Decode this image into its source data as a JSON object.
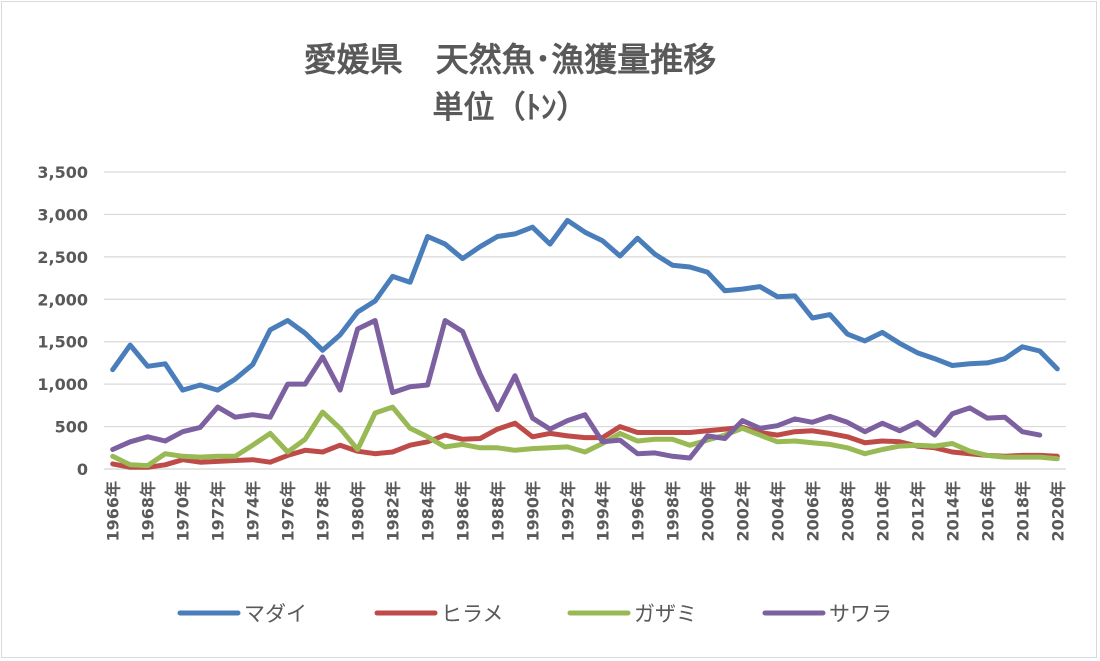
{
  "chart_data": {
    "type": "line",
    "title": "愛媛県　天然魚･漁獲量推移",
    "subtitle": "単位（ﾄﾝ）",
    "xlabel": "",
    "ylabel": "",
    "ylim": [
      0,
      3500
    ],
    "yticks": [
      0,
      500,
      1000,
      1500,
      2000,
      2500,
      3000,
      3500
    ],
    "ytick_labels": [
      "0",
      "500",
      "1,000",
      "1,500",
      "2,000",
      "2,500",
      "3,000",
      "3,500"
    ],
    "grid": true,
    "legend_position": "bottom",
    "x": [
      1966,
      1967,
      1968,
      1969,
      1970,
      1971,
      1972,
      1973,
      1974,
      1975,
      1976,
      1977,
      1978,
      1979,
      1980,
      1981,
      1982,
      1983,
      1984,
      1985,
      1986,
      1987,
      1988,
      1989,
      1990,
      1991,
      1992,
      1993,
      1994,
      1995,
      1996,
      1997,
      1998,
      1999,
      2000,
      2001,
      2002,
      2003,
      2004,
      2005,
      2006,
      2007,
      2008,
      2009,
      2010,
      2011,
      2012,
      2013,
      2014,
      2015,
      2016,
      2017,
      2018,
      2019,
      2020
    ],
    "xtick_labels": [
      "1966年",
      "1968年",
      "1970年",
      "1972年",
      "1974年",
      "1976年",
      "1978年",
      "1980年",
      "1982年",
      "1984年",
      "1986年",
      "1988年",
      "1990年",
      "1992年",
      "1994年",
      "1996年",
      "1998年",
      "2000年",
      "2002年",
      "2004年",
      "2006年",
      "2008年",
      "2010年",
      "2012年",
      "2014年",
      "2016年",
      "2018年",
      "2020年"
    ],
    "series": [
      {
        "name": "マダイ",
        "color": "#4a7ebb",
        "values": [
          1170,
          1460,
          1210,
          1240,
          930,
          990,
          930,
          1060,
          1230,
          1640,
          1750,
          1600,
          1400,
          1580,
          1850,
          1980,
          2270,
          2200,
          2740,
          2650,
          2480,
          2620,
          2740,
          2770,
          2850,
          2650,
          2930,
          2790,
          2690,
          2510,
          2720,
          2530,
          2400,
          2380,
          2320,
          2100,
          2120,
          2150,
          2030,
          2040,
          1780,
          1820,
          1590,
          1510,
          1610,
          1480,
          1370,
          1300,
          1220,
          1240,
          1250,
          1300,
          1440,
          1390,
          1180
        ]
      },
      {
        "name": "ヒラメ",
        "color": "#be4b48",
        "values": [
          60,
          20,
          20,
          50,
          110,
          80,
          90,
          100,
          110,
          80,
          160,
          220,
          200,
          280,
          210,
          180,
          200,
          280,
          320,
          400,
          350,
          360,
          470,
          540,
          380,
          420,
          390,
          370,
          370,
          500,
          430,
          430,
          430,
          430,
          450,
          470,
          490,
          430,
          400,
          440,
          450,
          420,
          380,
          310,
          330,
          320,
          270,
          250,
          200,
          180,
          160,
          150,
          160,
          160,
          150
        ]
      },
      {
        "name": "ガザミ",
        "color": "#98b954",
        "values": [
          150,
          50,
          40,
          180,
          150,
          140,
          150,
          150,
          280,
          420,
          200,
          350,
          670,
          480,
          230,
          660,
          730,
          480,
          380,
          260,
          290,
          250,
          250,
          220,
          240,
          250,
          260,
          200,
          300,
          420,
          330,
          350,
          350,
          280,
          340,
          400,
          480,
          400,
          320,
          330,
          310,
          290,
          250,
          180,
          230,
          270,
          280,
          270,
          300,
          210,
          160,
          140,
          140,
          140,
          120
        ]
      },
      {
        "name": "サワラ",
        "color": "#7d60a0",
        "values": [
          230,
          320,
          380,
          330,
          440,
          490,
          730,
          610,
          640,
          610,
          1000,
          1000,
          1320,
          930,
          1650,
          1750,
          900,
          970,
          990,
          1750,
          1620,
          1120,
          700,
          1100,
          600,
          470,
          570,
          640,
          320,
          340,
          180,
          190,
          150,
          130,
          390,
          360,
          570,
          480,
          510,
          590,
          550,
          620,
          550,
          440,
          540,
          450,
          550,
          400,
          650,
          720,
          600,
          610,
          440,
          400,
          null
        ]
      }
    ]
  }
}
